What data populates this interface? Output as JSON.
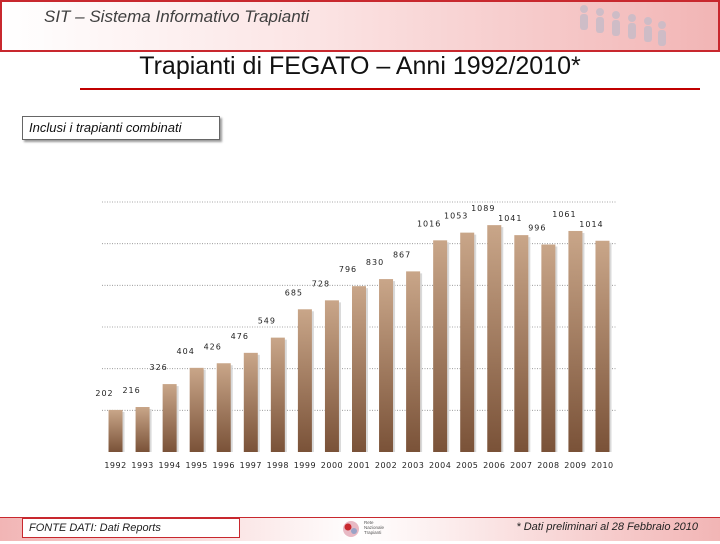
{
  "header": {
    "app_title": "SIT – Sistema Informativo Trapianti"
  },
  "main_title": "Trapianti di FEGATO – Anni 1992/2010*",
  "note": "Inclusi i trapianti combinati",
  "chart_data": {
    "type": "bar",
    "title": "",
    "xlabel": "",
    "ylabel": "",
    "grid": true,
    "legend": "none",
    "ylim": [
      0,
      1200
    ],
    "categories": [
      "1992",
      "1993",
      "1994",
      "1995",
      "1996",
      "1997",
      "1998",
      "1999",
      "2000",
      "2001",
      "2002",
      "2003",
      "2004",
      "2005",
      "2006",
      "2007",
      "2008",
      "2009",
      "2010"
    ],
    "values": [
      202,
      216,
      326,
      404,
      426,
      476,
      549,
      685,
      728,
      796,
      830,
      867,
      1016,
      1053,
      1089,
      1041,
      996,
      1061,
      1014
    ],
    "bar_color_top": "#c9a689",
    "bar_color_bottom": "#7a5238"
  },
  "footer": {
    "source": "FONTE DATI: Dati Reports",
    "footnote": "* Dati preliminari al 28 Febbraio 2010",
    "logo_text": "Rete\nNazionale\nTrapianti"
  },
  "colors": {
    "accent": "#c8282e",
    "title_rule": "#c00000"
  }
}
